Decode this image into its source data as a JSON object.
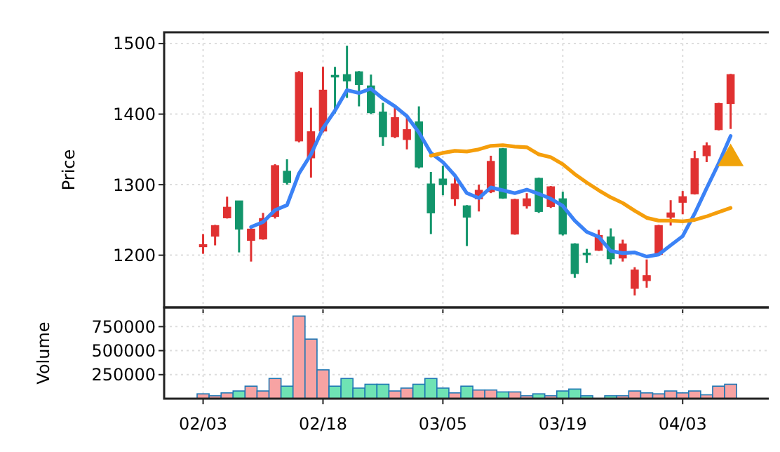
{
  "chart_data": [
    {
      "type": "candlestick",
      "ylabel": "Price",
      "categories": [
        null,
        null,
        null,
        null,
        null,
        null,
        null,
        null,
        null,
        null,
        null,
        null,
        null,
        null,
        null,
        null,
        null,
        null,
        null,
        null,
        null,
        null,
        null,
        null,
        null,
        null,
        null,
        null,
        null,
        null,
        null,
        null,
        null,
        null,
        null,
        null,
        null,
        null,
        null,
        null,
        null,
        null,
        null,
        null,
        null
      ],
      "ohlc": [
        [
          1212,
          1230,
          1202,
          1215
        ],
        [
          1227,
          1243,
          1214,
          1242
        ],
        [
          1253,
          1283,
          1252,
          1268
        ],
        [
          1277,
          1277,
          1204,
          1237
        ],
        [
          1221,
          1240,
          1191,
          1237
        ],
        [
          1223,
          1260,
          1222,
          1252
        ],
        [
          1255,
          1329,
          1252,
          1327
        ],
        [
          1319,
          1336,
          1300,
          1303
        ],
        [
          1362,
          1461,
          1360,
          1459
        ],
        [
          1338,
          1409,
          1310,
          1375
        ],
        [
          1376,
          1467,
          1374,
          1434
        ],
        [
          1455,
          1467,
          1401,
          1453
        ],
        [
          1456,
          1497,
          1423,
          1447
        ],
        [
          1460,
          1461,
          1411,
          1442
        ],
        [
          1440,
          1456,
          1400,
          1402
        ],
        [
          1403,
          1416,
          1355,
          1368
        ],
        [
          1368,
          1412,
          1366,
          1395
        ],
        [
          1364,
          1399,
          1350,
          1378
        ],
        [
          1389,
          1411,
          1323,
          1325
        ],
        [
          1301,
          1318,
          1230,
          1260
        ],
        [
          1308,
          1327,
          1285,
          1300
        ],
        [
          1280,
          1310,
          1270,
          1301
        ],
        [
          1270,
          1271,
          1213,
          1254
        ],
        [
          1280,
          1300,
          1262,
          1292
        ],
        [
          1290,
          1341,
          1288,
          1333
        ],
        [
          1351,
          1352,
          1280,
          1281
        ],
        [
          1230,
          1280,
          1229,
          1279
        ],
        [
          1270,
          1288,
          1266,
          1280
        ],
        [
          1309,
          1310,
          1260,
          1262
        ],
        [
          1269,
          1298,
          1267,
          1297
        ],
        [
          1280,
          1290,
          1228,
          1230
        ],
        [
          1216,
          1217,
          1168,
          1174
        ],
        [
          1203,
          1209,
          1189,
          1201
        ],
        [
          1207,
          1236,
          1206,
          1228
        ],
        [
          1226,
          1238,
          1187,
          1195
        ],
        [
          1196,
          1222,
          1191,
          1216
        ],
        [
          1153,
          1183,
          1143,
          1179
        ],
        [
          1164,
          1194,
          1154,
          1171
        ],
        [
          1201,
          1243,
          1200,
          1242
        ],
        [
          1254,
          1278,
          1242,
          1260
        ],
        [
          1275,
          1291,
          1258,
          1283
        ],
        [
          1287,
          1348,
          1286,
          1337
        ],
        [
          1341,
          1360,
          1332,
          1355
        ],
        [
          1378,
          1416,
          1377,
          1415
        ],
        [
          1415,
          1457,
          1379,
          1456
        ]
      ],
      "colors": [
        "#e03131",
        "#e03131",
        "#e03131",
        "#12956b",
        "#e03131",
        "#e03131",
        "#e03131",
        "#12956b",
        "#e03131",
        "#e03131",
        "#e03131",
        "#12956b",
        "#12956b",
        "#12956b",
        "#12956b",
        "#12956b",
        "#e03131",
        "#e03131",
        "#12956b",
        "#12956b",
        "#12956b",
        "#e03131",
        "#12956b",
        "#e03131",
        "#e03131",
        "#12956b",
        "#e03131",
        "#e03131",
        "#12956b",
        "#e03131",
        "#12956b",
        "#12956b",
        "#12956b",
        "#e03131",
        "#12956b",
        "#e03131",
        "#e03131",
        "#e03131",
        "#e03131",
        "#e03131",
        "#e03131",
        "#e03131",
        "#e03131",
        "#e03131",
        "#e03131"
      ],
      "series": [
        {
          "type": "line",
          "color": "#3b82f6",
          "values": [
            null,
            null,
            null,
            null,
            1240,
            1247,
            1264,
            1271,
            1316,
            1343,
            1380,
            1405,
            1434,
            1430,
            1436,
            1422,
            1411,
            1397,
            1374,
            1345,
            1332,
            1313,
            1288,
            1281,
            1296,
            1292,
            1288,
            1293,
            1287,
            1280,
            1270,
            1249,
            1233,
            1226,
            1206,
            1203,
            1204,
            1198,
            1201,
            1214,
            1227,
            1259,
            1295,
            1330,
            1369
          ]
        },
        {
          "type": "line",
          "color": "#f59e0b",
          "values": [
            null,
            null,
            null,
            null,
            null,
            null,
            null,
            null,
            null,
            null,
            null,
            null,
            null,
            null,
            null,
            null,
            null,
            null,
            null,
            1341,
            1345,
            1348,
            1347,
            1350,
            1355,
            1356,
            1354,
            1353,
            1343,
            1339,
            1329,
            1315,
            1303,
            1292,
            1282,
            1274,
            1263,
            1253,
            1249,
            1249,
            1248,
            1250,
            1255,
            1261,
            1267
          ]
        },
        {
          "type": "scatter",
          "marker": "triangle",
          "color": "#f0a30a",
          "values": [
            null,
            null,
            null,
            null,
            null,
            null,
            null,
            null,
            null,
            null,
            null,
            null,
            null,
            null,
            null,
            null,
            null,
            null,
            null,
            null,
            null,
            null,
            null,
            null,
            null,
            null,
            null,
            null,
            null,
            null,
            null,
            null,
            null,
            null,
            null,
            null,
            null,
            null,
            null,
            null,
            null,
            null,
            null,
            null,
            1337
          ]
        }
      ],
      "ylim": [
        1126,
        1516
      ],
      "yticks": [
        1200,
        1300,
        1400,
        1500
      ],
      "grid": true,
      "tick_labels": "y"
    },
    {
      "type": "bar",
      "ylabel": "Volume",
      "categories": [
        "02/03",
        null,
        null,
        null,
        null,
        null,
        null,
        null,
        null,
        null,
        "02/18",
        null,
        null,
        null,
        null,
        null,
        null,
        null,
        null,
        null,
        "03/05",
        null,
        null,
        null,
        null,
        null,
        null,
        null,
        null,
        null,
        "03/19",
        null,
        null,
        null,
        null,
        null,
        null,
        null,
        null,
        null,
        "04/03",
        null,
        null,
        null,
        null
      ],
      "values": [
        50000,
        30000,
        60000,
        80000,
        130000,
        80000,
        210000,
        130000,
        860000,
        620000,
        300000,
        130000,
        210000,
        110000,
        150000,
        150000,
        80000,
        110000,
        150000,
        210000,
        110000,
        60000,
        130000,
        90000,
        90000,
        70000,
        70000,
        30000,
        50000,
        30000,
        80000,
        100000,
        30000,
        null,
        30000,
        30000,
        80000,
        60000,
        50000,
        80000,
        60000,
        80000,
        40000,
        130000,
        150000
      ],
      "colors": [
        "#f7a3a3",
        "#f7a3a3",
        "#f7a3a3",
        "#6fe3b4",
        "#f7a3a3",
        "#f7a3a3",
        "#f7a3a3",
        "#6fe3b4",
        "#f7a3a3",
        "#f7a3a3",
        "#f7a3a3",
        "#6fe3b4",
        "#6fe3b4",
        "#6fe3b4",
        "#6fe3b4",
        "#6fe3b4",
        "#f7a3a3",
        "#f7a3a3",
        "#6fe3b4",
        "#6fe3b4",
        "#6fe3b4",
        "#f7a3a3",
        "#6fe3b4",
        "#f7a3a3",
        "#f7a3a3",
        "#6fe3b4",
        "#f7a3a3",
        "#f7a3a3",
        "#6fe3b4",
        "#f7a3a3",
        "#6fe3b4",
        "#6fe3b4",
        "#6fe3b4",
        null,
        "#6fe3b4",
        "#f7a3a3",
        "#f7a3a3",
        "#f7a3a3",
        "#f7a3a3",
        "#f7a3a3",
        "#f7a3a3",
        "#f7a3a3",
        "#f7a3a3",
        "#f7a3a3",
        "#f7a3a3"
      ],
      "ylim": [
        0,
        950000
      ],
      "yticks": [
        250000,
        500000,
        750000
      ],
      "grid": true
    }
  ]
}
